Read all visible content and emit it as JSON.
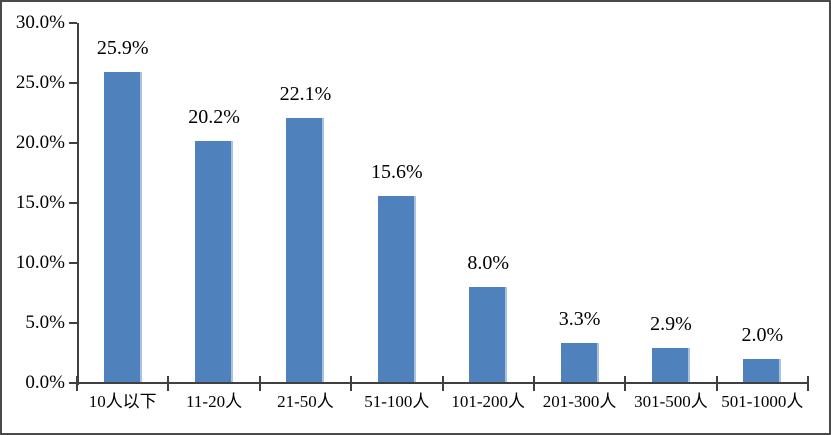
{
  "chart_data": {
    "type": "bar",
    "title": "",
    "xlabel": "",
    "ylabel": "",
    "categories": [
      "10人以下",
      "11-20人",
      "21-50人",
      "51-100人",
      "101-200人",
      "201-300人",
      "301-500人",
      "501-1000人"
    ],
    "values": [
      25.9,
      20.2,
      22.1,
      15.6,
      8.0,
      3.3,
      2.9,
      2.0
    ],
    "data_labels": [
      "25.9%",
      "20.2%",
      "22.1%",
      "15.6%",
      "8.0%",
      "3.3%",
      "2.9%",
      "2.0%"
    ],
    "y_tick_labels": [
      "30.0%",
      "25.0%",
      "20.0%",
      "15.0%",
      "10.0%",
      "5.0%",
      "0.0%"
    ],
    "y_tick_values": [
      30,
      25,
      20,
      15,
      10,
      5,
      0
    ],
    "ylim": [
      0,
      30
    ],
    "grid": false,
    "legend": false,
    "bar_color": "#4F81BD",
    "bar_edge_color": "#A9C2DF",
    "axis_color": "#404040",
    "text_color": "#000000"
  }
}
